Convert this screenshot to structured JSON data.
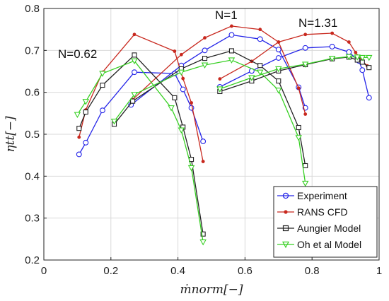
{
  "chart_data": {
    "type": "line",
    "xlabel": "ṁnorm[−]",
    "ylabel": "ηtt[−]",
    "xlim": [
      0,
      1.0
    ],
    "ylim": [
      0.2,
      0.8
    ],
    "xticks": [
      "0",
      "0.2",
      "0.4",
      "0.6",
      "0.8",
      "1"
    ],
    "yticks": [
      "0.2",
      "0.3",
      "0.4",
      "0.5",
      "0.6",
      "0.7",
      "0.8"
    ],
    "grid": true,
    "legend_position": "bottom-right",
    "annotations": [
      {
        "text": "N=0.62",
        "x": 0.05,
        "y": 0.72
      },
      {
        "text": "N=1",
        "x": 0.53,
        "y": 0.775
      },
      {
        "text": "N=1.31",
        "x": 0.79,
        "y": 0.765
      }
    ],
    "series": [
      {
        "name": "Experiment",
        "color": "#2424e8",
        "marker": "circle",
        "curves": [
          [
            [
              0.105,
              0.452
            ],
            [
              0.125,
              0.48
            ],
            [
              0.175,
              0.557
            ],
            [
              0.27,
              0.648
            ],
            [
              0.39,
              0.645
            ],
            [
              0.415,
              0.607
            ],
            [
              0.44,
              0.563
            ],
            [
              0.475,
              0.483
            ]
          ],
          [
            [
              0.26,
              0.57
            ],
            [
              0.41,
              0.664
            ],
            [
              0.48,
              0.7
            ],
            [
              0.56,
              0.737
            ],
            [
              0.645,
              0.727
            ],
            [
              0.7,
              0.702
            ],
            [
              0.76,
              0.612
            ],
            [
              0.78,
              0.563
            ]
          ],
          [
            [
              0.525,
              0.613
            ],
            [
              0.62,
              0.651
            ],
            [
              0.7,
              0.682
            ],
            [
              0.78,
              0.706
            ],
            [
              0.86,
              0.709
            ],
            [
              0.91,
              0.696
            ],
            [
              0.94,
              0.675
            ],
            [
              0.95,
              0.653
            ],
            [
              0.97,
              0.587
            ]
          ]
        ]
      },
      {
        "name": "RANS CFD",
        "color": "#c8281e",
        "marker": "dot",
        "curves": [
          [
            [
              0.105,
              0.493
            ],
            [
              0.125,
              0.558
            ],
            [
              0.175,
              0.648
            ],
            [
              0.27,
              0.738
            ],
            [
              0.39,
              0.698
            ],
            [
              0.415,
              0.633
            ],
            [
              0.44,
              0.575
            ],
            [
              0.475,
              0.435
            ]
          ],
          [
            [
              0.265,
              0.583
            ],
            [
              0.41,
              0.69
            ],
            [
              0.48,
              0.73
            ],
            [
              0.56,
              0.758
            ],
            [
              0.645,
              0.75
            ],
            [
              0.7,
              0.72
            ],
            [
              0.76,
              0.61
            ],
            [
              0.78,
              0.548
            ]
          ],
          [
            [
              0.525,
              0.632
            ],
            [
              0.62,
              0.674
            ],
            [
              0.7,
              0.72
            ],
            [
              0.78,
              0.738
            ],
            [
              0.86,
              0.741
            ],
            [
              0.91,
              0.72
            ],
            [
              0.93,
              0.695
            ],
            [
              0.95,
              0.675
            ],
            [
              0.965,
              0.663
            ]
          ]
        ]
      },
      {
        "name": "Aungier Model",
        "color": "#222222",
        "marker": "square",
        "curves": [
          [
            [
              0.105,
              0.514
            ],
            [
              0.125,
              0.553
            ],
            [
              0.175,
              0.617
            ],
            [
              0.27,
              0.689
            ],
            [
              0.39,
              0.587
            ],
            [
              0.415,
              0.517
            ],
            [
              0.44,
              0.44
            ],
            [
              0.475,
              0.262
            ]
          ],
          [
            [
              0.21,
              0.524
            ],
            [
              0.265,
              0.579
            ],
            [
              0.41,
              0.656
            ],
            [
              0.48,
              0.681
            ],
            [
              0.56,
              0.699
            ],
            [
              0.645,
              0.664
            ],
            [
              0.7,
              0.627
            ],
            [
              0.76,
              0.516
            ],
            [
              0.78,
              0.425
            ]
          ],
          [
            [
              0.525,
              0.602
            ],
            [
              0.62,
              0.627
            ],
            [
              0.7,
              0.651
            ],
            [
              0.78,
              0.666
            ],
            [
              0.86,
              0.68
            ],
            [
              0.91,
              0.684
            ],
            [
              0.935,
              0.677
            ],
            [
              0.95,
              0.672
            ],
            [
              0.97,
              0.659
            ]
          ]
        ]
      },
      {
        "name": "Oh et al Model",
        "color": "#38d024",
        "marker": "triangle",
        "curves": [
          [
            [
              0.1,
              0.547
            ],
            [
              0.125,
              0.578
            ],
            [
              0.175,
              0.645
            ],
            [
              0.27,
              0.675
            ],
            [
              0.38,
              0.563
            ],
            [
              0.41,
              0.51
            ],
            [
              0.44,
              0.42
            ],
            [
              0.475,
              0.243
            ]
          ],
          [
            [
              0.21,
              0.531
            ],
            [
              0.27,
              0.595
            ],
            [
              0.41,
              0.648
            ],
            [
              0.48,
              0.665
            ],
            [
              0.56,
              0.677
            ],
            [
              0.645,
              0.648
            ],
            [
              0.7,
              0.605
            ],
            [
              0.76,
              0.492
            ],
            [
              0.78,
              0.383
            ]
          ],
          [
            [
              0.525,
              0.608
            ],
            [
              0.62,
              0.635
            ],
            [
              0.7,
              0.656
            ],
            [
              0.78,
              0.667
            ],
            [
              0.86,
              0.681
            ],
            [
              0.91,
              0.685
            ],
            [
              0.935,
              0.684
            ],
            [
              0.95,
              0.683
            ],
            [
              0.97,
              0.683
            ]
          ]
        ]
      }
    ]
  }
}
